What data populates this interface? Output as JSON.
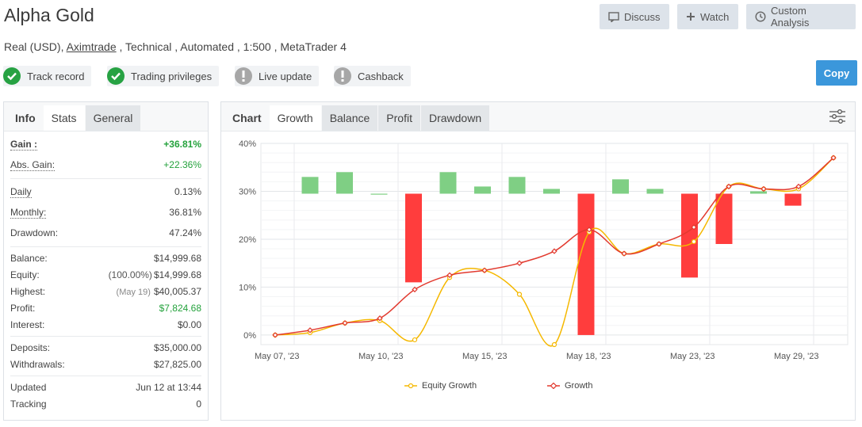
{
  "header": {
    "title": "Alpha Gold",
    "sub_prefix": "Real (USD), ",
    "broker": "Aximtrade",
    "sub_suffix": " , Technical , Automated , 1:500 , MetaTrader 4"
  },
  "actions": {
    "discuss": "Discuss",
    "watch": "Watch",
    "custom_analysis": "Custom Analysis",
    "copy": "Copy"
  },
  "badges": [
    {
      "label": "Track record",
      "status": "ok"
    },
    {
      "label": "Trading privileges",
      "status": "ok"
    },
    {
      "label": "Live update",
      "status": "warn"
    },
    {
      "label": "Cashback",
      "status": "warn"
    }
  ],
  "left_tabs": {
    "head": "Info",
    "stats": "Stats",
    "general": "General"
  },
  "stats": {
    "gain_label": "Gain :",
    "gain": "+36.81%",
    "abs_gain_label": "Abs. Gain:",
    "abs_gain": "+22.36%",
    "daily_label": "Daily",
    "daily": "0.13%",
    "monthly_label": "Monthly:",
    "monthly": "36.81%",
    "drawdown_label": "Drawdown:",
    "drawdown": "47.24%",
    "balance_label": "Balance:",
    "balance": "$14,999.68",
    "equity_label": "Equity:",
    "equity_pre": "(100.00%)",
    "equity": "$14,999.68",
    "highest_label": "Highest:",
    "highest_pre": "(May 19)",
    "highest": "$40,005.37",
    "profit_label": "Profit:",
    "profit": "$7,824.68",
    "interest_label": "Interest:",
    "interest": "$0.00",
    "deposits_label": "Deposits:",
    "deposits": "$35,000.00",
    "withdrawals_label": "Withdrawals:",
    "withdrawals": "$27,825.00",
    "updated_label": "Updated",
    "updated": "Jun 12 at 13:44",
    "tracking_label": "Tracking",
    "tracking": "0"
  },
  "chart_tabs": {
    "head": "Chart",
    "growth": "Growth",
    "balance": "Balance",
    "profit": "Profit",
    "drawdown": "Drawdown"
  },
  "colors": {
    "equity": "#f5b800",
    "growth": "#e23a2f",
    "bar_pos": "#7fcf84",
    "bar_neg": "#ff3d3d",
    "accent": "#3b97db"
  },
  "chart_data": {
    "type": "line",
    "x_tick_labels": [
      "May 07, '23",
      "May 10, '23",
      "May 15, '23",
      "May 18, '23",
      "May 23, '23",
      "May 29, '23"
    ],
    "y_tick_labels": [
      "40%",
      "30%",
      "20%",
      "10%",
      "0%"
    ],
    "ylim": [
      -2,
      40
    ],
    "series": [
      {
        "name": "Equity Growth",
        "values": [
          0,
          0.5,
          2.5,
          3,
          -1,
          12,
          13.5,
          8.5,
          -2,
          21.5,
          17,
          19,
          19.5,
          31,
          30.5,
          30.5,
          37
        ]
      },
      {
        "name": "Growth",
        "values": [
          0,
          1,
          2.5,
          3.5,
          9.5,
          12.5,
          13.5,
          15,
          17.5,
          22,
          17,
          19,
          22.5,
          31,
          30.5,
          31,
          37
        ]
      }
    ],
    "bars": [
      {
        "base": 29.5,
        "value": 33
      },
      {
        "base": 29.5,
        "value": 34
      },
      {
        "base": 29.5,
        "value": 29.5
      },
      {
        "base": 29.5,
        "value": 11
      },
      {
        "base": 29.5,
        "value": 34
      },
      {
        "base": 29.5,
        "value": 31
      },
      {
        "base": 29.5,
        "value": 33
      },
      {
        "base": 29.5,
        "value": 30.5
      },
      {
        "base": 29.5,
        "value": 0
      },
      {
        "base": 29.5,
        "value": 32.5
      },
      {
        "base": 29.5,
        "value": 30.5
      },
      {
        "base": 29.5,
        "value": 12
      },
      {
        "base": 29.5,
        "value": 19
      },
      {
        "base": 29.5,
        "value": 30
      },
      {
        "base": 29.5,
        "value": 27
      }
    ],
    "grid": true,
    "legend": "bottom"
  }
}
